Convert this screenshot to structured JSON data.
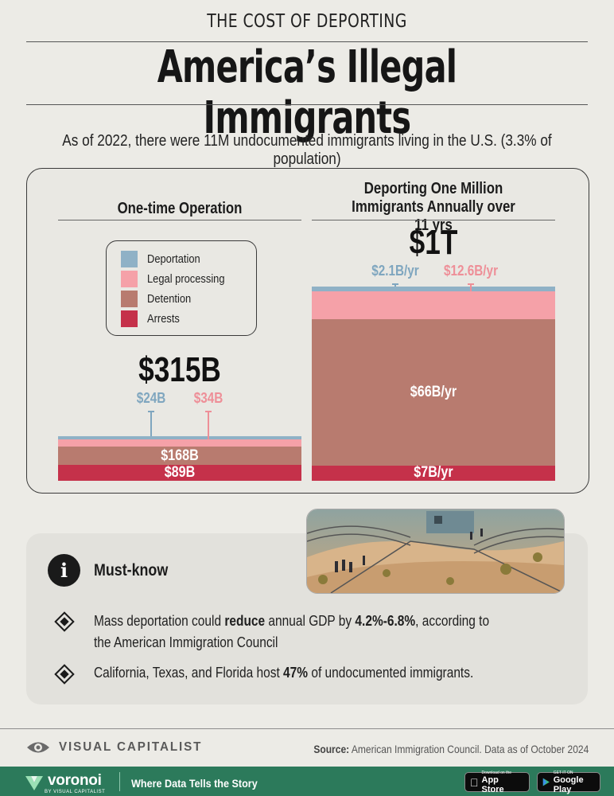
{
  "header": {
    "kicker": "THE COST OF DEPORTING",
    "title": "America’s Illegal Immigrants",
    "subtitle": "As of 2022, there were 11M undocumented immigrants living in the U.S. (3.3% of population)"
  },
  "chart_data": [
    {
      "type": "bar",
      "stacked": true,
      "title": "One-time Operation",
      "total_label": "$315B",
      "unit": "$B",
      "series": [
        {
          "name": "Arrests",
          "value": 89,
          "label": "$89B",
          "color": "#c5314a"
        },
        {
          "name": "Detention",
          "value": 168,
          "label": "$168B",
          "color": "#b87b6f"
        },
        {
          "name": "Legal processing",
          "value": 34,
          "label": "$34B",
          "color": "#f5a1a8"
        },
        {
          "name": "Deportation",
          "value": 24,
          "label": "$24B",
          "color": "#8fb1c6"
        }
      ]
    },
    {
      "type": "bar",
      "stacked": true,
      "title": "Deporting One Million Immigrants Annually over 11 yrs",
      "total_label": "$1T",
      "unit": "$B/yr",
      "series": [
        {
          "name": "Arrests",
          "value": 7,
          "label": "$7B/yr",
          "color": "#c5314a"
        },
        {
          "name": "Detention",
          "value": 66,
          "label": "$66B/yr",
          "color": "#b87b6f"
        },
        {
          "name": "Legal processing",
          "value": 12.6,
          "label": "$12.6B/yr",
          "color": "#f5a1a8"
        },
        {
          "name": "Deportation",
          "value": 2.1,
          "label": "$2.1B/yr",
          "color": "#8fb1c6"
        }
      ]
    }
  ],
  "legend": [
    {
      "label": "Deportation",
      "color": "#8fb1c6"
    },
    {
      "label": "Legal processing",
      "color": "#f5a1a8"
    },
    {
      "label": "Detention",
      "color": "#b87b6f"
    },
    {
      "label": "Arrests",
      "color": "#c5314a"
    }
  ],
  "must_know": {
    "title": "Must-know",
    "bullet1": {
      "pre": "Mass deportation could ",
      "bold1": "reduce",
      "mid": " annual GDP by ",
      "bold2": "4.2%-6.8%",
      "post": ", according to the American Immigration Council"
    },
    "bullet2": {
      "pre": "California, Texas, and Florida host ",
      "bold": "47%",
      "post": " of undocumented immigrants."
    }
  },
  "footer": {
    "brand": "VISUAL CAPITALIST",
    "source_label": "Source:",
    "source_text": " American Immigration Council. Data as of October 2024"
  },
  "bottom_bar": {
    "brand": "voronoi",
    "brand_sub": "BY VISUAL CAPITALIST",
    "tagline": "Where Data Tells the Story",
    "appstore_small": "Download on the",
    "appstore": "App Store",
    "googleplay_small": "GET IT ON",
    "googleplay": "Google Play"
  }
}
